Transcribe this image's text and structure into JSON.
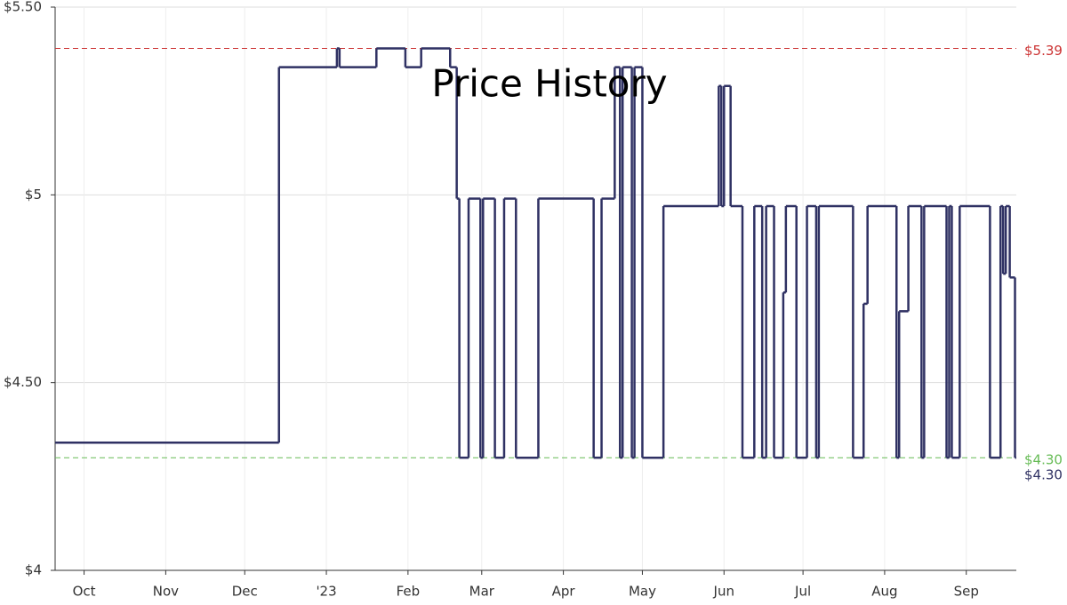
{
  "chart_data": {
    "type": "step-line",
    "title": "Price History",
    "x": [
      0,
      85,
      107,
      108,
      122,
      133,
      139,
      150,
      152.5,
      153.5,
      157,
      161.5,
      162.5,
      167,
      170.5,
      175,
      183.5,
      204.5,
      207.5,
      212.5,
      214.5,
      215.5,
      219,
      220,
      223,
      231,
      252,
      253,
      254,
      256.5,
      261,
      265.5,
      268.5,
      270,
      273,
      276.5,
      277.5,
      281.5,
      285.5,
      289,
      290,
      303,
      307,
      308.5,
      319.5,
      320.5,
      324,
      329,
      330,
      338.5,
      339.5,
      340.5,
      343.5,
      355,
      359,
      360,
      361,
      362.5,
      364.5
    ],
    "series": [
      {
        "color": "#2f3163",
        "values": [
          4.34,
          5.34,
          5.39,
          5.34,
          5.39,
          5.34,
          5.39,
          5.34,
          4.99,
          4.3,
          4.99,
          4.3,
          4.99,
          4.3,
          4.99,
          4.3,
          4.99,
          4.3,
          4.99,
          5.34,
          4.3,
          5.34,
          4.3,
          5.34,
          4.3,
          4.97,
          5.29,
          4.97,
          5.29,
          4.97,
          4.3,
          4.97,
          4.3,
          4.97,
          4.3,
          4.74,
          4.97,
          4.3,
          4.97,
          4.3,
          4.97,
          4.3,
          4.71,
          4.97,
          4.3,
          4.69,
          4.97,
          4.3,
          4.97,
          4.3,
          4.97,
          4.3,
          4.97,
          4.3,
          4.97,
          4.79,
          4.97,
          4.78,
          4.3
        ]
      }
    ],
    "xlim": [
      0,
      365
    ],
    "xticks": [
      {
        "value": 11,
        "label": "Oct"
      },
      {
        "value": 42,
        "label": "Nov"
      },
      {
        "value": 72,
        "label": "Dec"
      },
      {
        "value": 103,
        "label": "'23"
      },
      {
        "value": 134,
        "label": "Feb"
      },
      {
        "value": 162,
        "label": "Mar"
      },
      {
        "value": 193,
        "label": "Apr"
      },
      {
        "value": 223,
        "label": "May"
      },
      {
        "value": 254,
        "label": "Jun"
      },
      {
        "value": 284,
        "label": "Jul"
      },
      {
        "value": 315,
        "label": "Aug"
      },
      {
        "value": 346,
        "label": "Sep"
      }
    ],
    "ylim": [
      4,
      5.5
    ],
    "yticks": [
      {
        "value": 4,
        "label": "$4"
      },
      {
        "value": 4.5,
        "label": "$4.50"
      },
      {
        "value": 5,
        "label": "$5"
      },
      {
        "value": 5.5,
        "label": "$5.50"
      }
    ],
    "grid": true,
    "reference_lines": [
      {
        "value": 5.39,
        "label": "$5.39",
        "color": "#cc3333"
      },
      {
        "value": 4.3,
        "label": "$4.30",
        "color": "#66bb55"
      }
    ],
    "current_label": {
      "value": 4.3,
      "label": "$4.30",
      "color": "#2f3163"
    }
  }
}
